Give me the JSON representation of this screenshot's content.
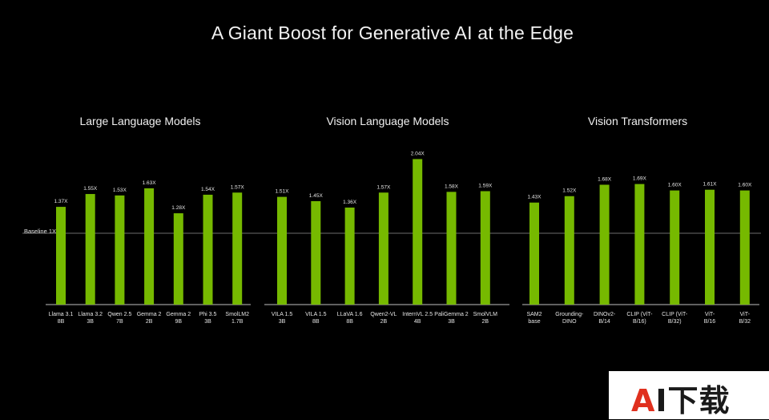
{
  "title": "A Giant Boost for Generative AI at the Edge",
  "baseline_label": "Baseline 1X",
  "watermark": "AI下载",
  "colors": {
    "bar": "#76b900",
    "background": "#000000",
    "axis": "#ffffff"
  },
  "chart_data": [
    {
      "type": "bar",
      "title": "Large Language Models",
      "categories": [
        [
          "Llama 3.1",
          "8B"
        ],
        [
          "Llama 3.2",
          "3B"
        ],
        [
          "Qwen 2.5",
          "7B"
        ],
        [
          "Gemma 2",
          "2B"
        ],
        [
          "Gemma 2",
          "9B"
        ],
        [
          "Phi 3.5",
          "3B"
        ],
        [
          "SmolLM2",
          "1.7B"
        ]
      ],
      "values": [
        1.37,
        1.55,
        1.53,
        1.63,
        1.28,
        1.54,
        1.57
      ],
      "value_labels": [
        "1.37X",
        "1.55X",
        "1.53X",
        "1.63X",
        "1.28X",
        "1.54X",
        "1.57X"
      ],
      "baseline": 1,
      "ylim": [
        0,
        2.2
      ],
      "grid": false
    },
    {
      "type": "bar",
      "title": "Vision Language Models",
      "categories": [
        [
          "VILA 1.5",
          "3B"
        ],
        [
          "VILA 1.5",
          "8B"
        ],
        [
          "LLaVA 1.6",
          "8B"
        ],
        [
          "Qwen2-VL",
          "2B"
        ],
        [
          "InternVL 2.5",
          "4B"
        ],
        [
          "PaliGemma 2",
          "3B"
        ],
        [
          "SmolVLM",
          "2B"
        ]
      ],
      "values": [
        1.51,
        1.45,
        1.36,
        1.57,
        2.04,
        1.58,
        1.59
      ],
      "value_labels": [
        "1.51X",
        "1.45X",
        "1.36X",
        "1.57X",
        "2.04X",
        "1.58X",
        "1.59X"
      ],
      "baseline": 1,
      "ylim": [
        0,
        2.2
      ],
      "grid": false
    },
    {
      "type": "bar",
      "title": "Vision Transformers",
      "categories": [
        [
          "SAM2",
          "base"
        ],
        [
          "Grounding-",
          "DINO"
        ],
        [
          "DINOv2-",
          "B/14"
        ],
        [
          "CLIP (ViT-",
          "B/16)"
        ],
        [
          "CLIP (ViT-",
          "B/32)"
        ],
        [
          "ViT-",
          "B/16"
        ],
        [
          "ViT-",
          "B/32"
        ]
      ],
      "values": [
        1.43,
        1.52,
        1.68,
        1.69,
        1.6,
        1.61,
        1.6
      ],
      "value_labels": [
        "1.43X",
        "1.52X",
        "1.68X",
        "1.69X",
        "1.60X",
        "1.61X",
        "1.60X"
      ],
      "baseline": 1,
      "ylim": [
        0,
        2.2
      ],
      "grid": false
    }
  ]
}
